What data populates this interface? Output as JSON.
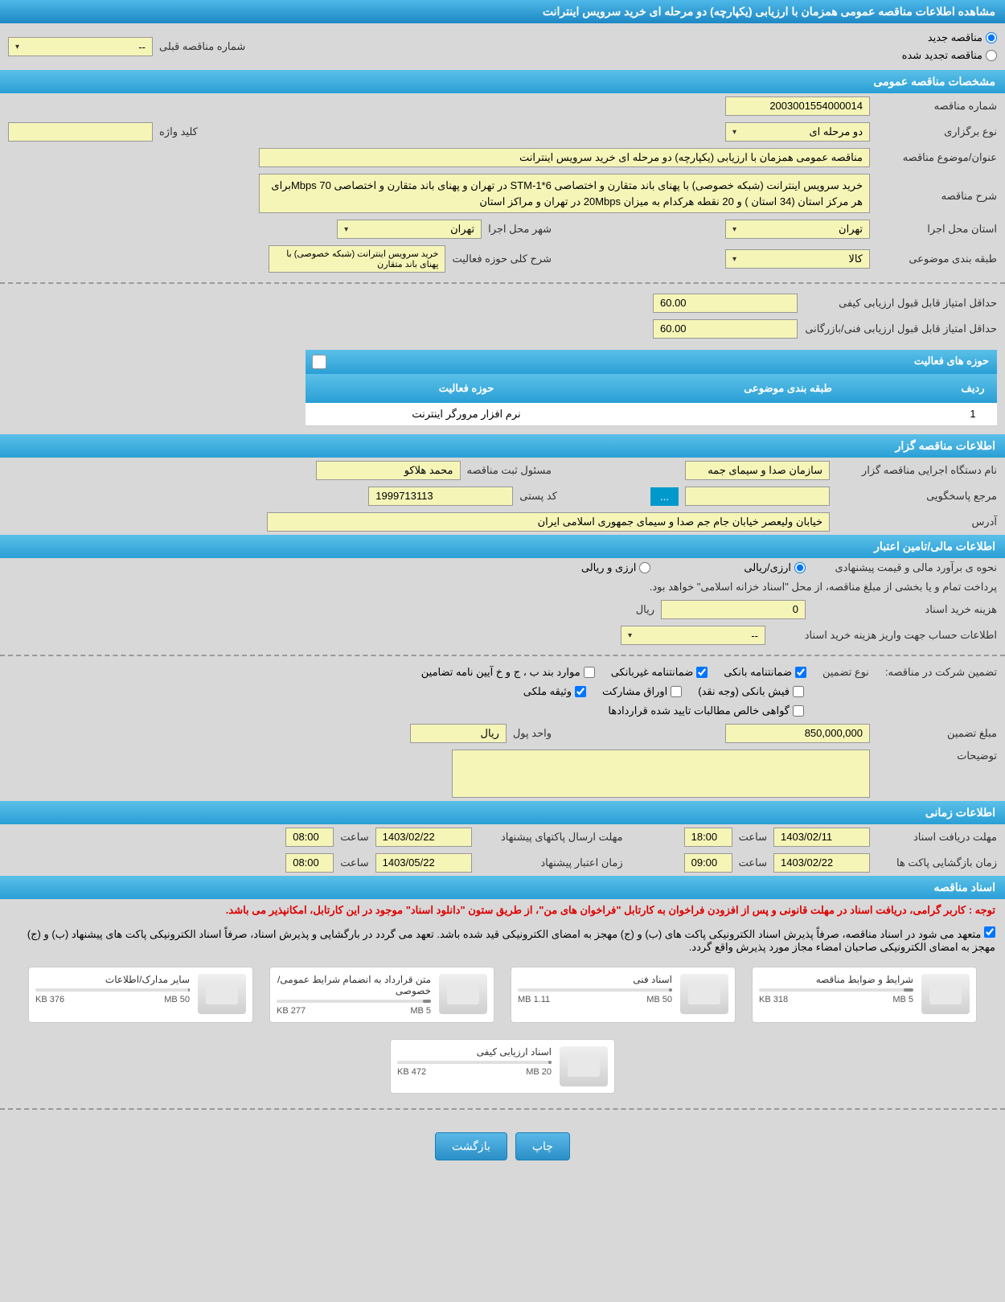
{
  "header": {
    "title": "مشاهده اطلاعات مناقصه عمومی همزمان با ارزیابی (یکپارچه) دو مرحله ای خرید سرویس اینترانت"
  },
  "tender_type": {
    "new": "مناقصه جدید",
    "renewed": "مناقصه تجدید شده",
    "prev_number_label": "شماره مناقصه قبلی",
    "prev_number_value": "--"
  },
  "general": {
    "section_title": "مشخصات مناقصه عمومی",
    "number_label": "شماره مناقصه",
    "number_value": "2003001554000014",
    "keyword_label": "کلید واژه",
    "keyword_value": "",
    "type_label": "نوع برگزاری",
    "type_value": "دو مرحله ای",
    "subject_label": "عنوان/موضوع مناقصه",
    "subject_value": "مناقصه عمومی همزمان با ارزیابی (یکپارچه) دو مرحله ای خرید سرویس اینترانت",
    "desc_label": "شرح مناقصه",
    "desc_value": "خرید سرویس اینترانت (شبکه خصوصی) با پهنای باند متقارن و اختصاصی STM-1*6 در تهران و پهنای باند متقارن و اختصاصی Mbps 70برای هر مرکز استان (34 استان ) و 20 نقطه هرکدام  به میزان 20Mbps در تهران و مراکز استان",
    "province_label": "استان محل اجرا",
    "province_value": "تهران",
    "city_label": "شهر محل اجرا",
    "city_value": "تهران",
    "category_label": "طبقه بندی موضوعی",
    "category_value": "کالا",
    "activity_desc_label": "شرح کلی حوزه فعالیت",
    "activity_desc_value": "خرید سرویس اینترانت (شبکه خصوصی) با پهنای باند متقارن",
    "quality_score_label": "حداقل امتیاز قابل قبول ارزیابی کیفی",
    "quality_score_value": "60.00",
    "tech_score_label": "حداقل امتیاز قابل قبول ارزیابی فنی/بازرگانی",
    "tech_score_value": "60.00"
  },
  "activity_table": {
    "title": "حوزه های فعالیت",
    "col_row": "ردیف",
    "col_category": "طبقه بندی موضوعی",
    "col_activity": "حوزه فعالیت",
    "row1_num": "1",
    "row1_cat": "",
    "row1_act": "نرم افزار مرورگر اینترنت"
  },
  "organizer": {
    "section_title": "اطلاعات مناقصه گزار",
    "org_label": "نام دستگاه اجرایی مناقصه گزار",
    "org_value": "سازمان صدا و سیمای جمه",
    "responsible_label": "مسئول ثبت مناقصه",
    "responsible_value": "محمد هلاکو",
    "contact_label": "مرجع پاسخگویی",
    "contact_btn": "...",
    "postal_label": "کد پستی",
    "postal_value": "1999713113",
    "address_label": "آدرس",
    "address_value": "خیابان ولیعصر خیابان جام جم صدا و سیمای جمهوری اسلامی ایران"
  },
  "financial": {
    "section_title": "اطلاعات مالی/تامین اعتبار",
    "estimate_label": "نحوه ی برآورد مالی و قیمت پیشنهادی",
    "opt_rial": "ارزی/ریالی",
    "opt_currency": "ارزی و ریالی",
    "payment_note": "پرداخت تمام و یا بخشی از مبلغ مناقصه، از محل \"اسناد خزانه اسلامی\" خواهد بود.",
    "doc_cost_label": "هزینه خرید اسناد",
    "doc_cost_value": "0",
    "doc_cost_unit": "ریال",
    "account_label": "اطلاعات حساب جهت واریز هزینه خرید اسناد",
    "account_value": "--"
  },
  "guarantee": {
    "label": "تضمین شرکت در مناقصه:",
    "type_label": "نوع تضمین",
    "opt_bank": "ضمانتنامه بانکی",
    "opt_nonbank": "ضمانتنامه غیربانکی",
    "opt_items": "موارد بند ب ، ج و خ آیین نامه تضامین",
    "opt_fish": "فیش بانکی (وجه نقد)",
    "opt_securities": "اوراق مشارکت",
    "opt_property": "وثیقه ملکی",
    "opt_certified": "گواهی خالص مطالبات تایید شده قراردادها",
    "amount_label": "مبلغ تضمین",
    "amount_value": "850,000,000",
    "unit_label": "واحد پول",
    "unit_value": "ریال",
    "notes_label": "توضیحات"
  },
  "timing": {
    "section_title": "اطلاعات زمانی",
    "receive_label": "مهلت دریافت اسناد",
    "receive_date": "1403/02/11",
    "receive_time_label": "ساعت",
    "receive_time": "18:00",
    "submit_label": "مهلت ارسال پاکتهای پیشنهاد",
    "submit_date": "1403/02/22",
    "submit_time_label": "ساعت",
    "submit_time": "08:00",
    "open_label": "زمان بازگشایی پاکت ها",
    "open_date": "1403/02/22",
    "open_time_label": "ساعت",
    "open_time": "09:00",
    "validity_label": "زمان اعتبار پیشنهاد",
    "validity_date": "1403/05/22",
    "validity_time_label": "ساعت",
    "validity_time": "08:00"
  },
  "docs": {
    "section_title": "اسناد مناقصه",
    "note1_prefix": "توجه :",
    "note1": " کاربر گرامی، دریافت اسناد در مهلت قانونی و پس از افزودن فراخوان به کارتابل \"فراخوان های من\"، از طریق ستون \"دانلود اسناد\" موجود در این کارتابل، امکانپذیر می باشد.",
    "note2": "متعهد می شود در اسناد مناقصه، صرفاً پذیرش اسناد الکترونیکی پاکت های (ب) و (ج) مهجز به امضای الکترونیکی قید شده باشد. تعهد می گردد در بارگشایی و پذیرش اسناد، صرفاً اسناد الکترونیکی پاکت های پیشنهاد (ب) و (ج) مهجز به امضای الکترونیکی صاحبان امضاء مجاز مورد پذیرش واقع گردد.",
    "folders": [
      {
        "title": "شرایط و ضوابط مناقصه",
        "used": "318 KB",
        "total": "5 MB",
        "pct": 6
      },
      {
        "title": "اسناد فنی",
        "used": "1.11 MB",
        "total": "50 MB",
        "pct": 2
      },
      {
        "title": "متن قرارداد به انضمام شرایط عمومی/خصوصی",
        "used": "277 KB",
        "total": "5 MB",
        "pct": 5
      },
      {
        "title": "سایر مدارک/اطلاعات",
        "used": "376 KB",
        "total": "50 MB",
        "pct": 1
      },
      {
        "title": "اسناد ارزیابی کیفی",
        "used": "472 KB",
        "total": "20 MB",
        "pct": 2
      }
    ]
  },
  "buttons": {
    "print": "چاپ",
    "back": "بازگشت"
  },
  "colors": {
    "header_bg": "#2a9fd6",
    "field_bg": "#f5f5b8",
    "page_bg": "#d8d8d8"
  }
}
